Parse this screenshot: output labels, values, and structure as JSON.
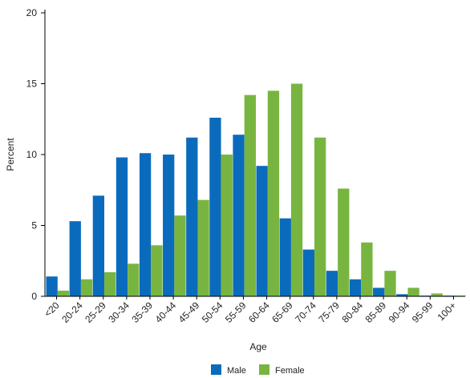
{
  "chart_data": {
    "type": "bar",
    "xlabel": "Age",
    "ylabel": "Percent",
    "ylim": [
      0,
      20
    ],
    "yticks": [
      0,
      5,
      10,
      15,
      20
    ],
    "grid": false,
    "legend_position": "bottom",
    "categories": [
      "<20",
      "20-24",
      "25-29",
      "30-34",
      "35-39",
      "40-44",
      "45-49",
      "50-54",
      "55-59",
      "60-64",
      "65-69",
      "70-74",
      "75-79",
      "80-84",
      "85-89",
      "90-94",
      "95-99",
      "100+"
    ],
    "series": [
      {
        "name": "Male",
        "color": "#0a6bbd",
        "values": [
          1.4,
          5.3,
          7.1,
          9.8,
          10.1,
          10.0,
          11.2,
          12.6,
          11.4,
          9.2,
          5.5,
          3.3,
          1.8,
          1.2,
          0.6,
          0.15,
          0.05,
          0.05
        ]
      },
      {
        "name": "Female",
        "color": "#78b540",
        "values": [
          0.4,
          1.2,
          1.7,
          2.3,
          3.6,
          5.7,
          6.8,
          10.0,
          14.2,
          14.5,
          15.0,
          11.2,
          7.6,
          3.8,
          1.8,
          0.6,
          0.2,
          0.05
        ]
      }
    ]
  }
}
